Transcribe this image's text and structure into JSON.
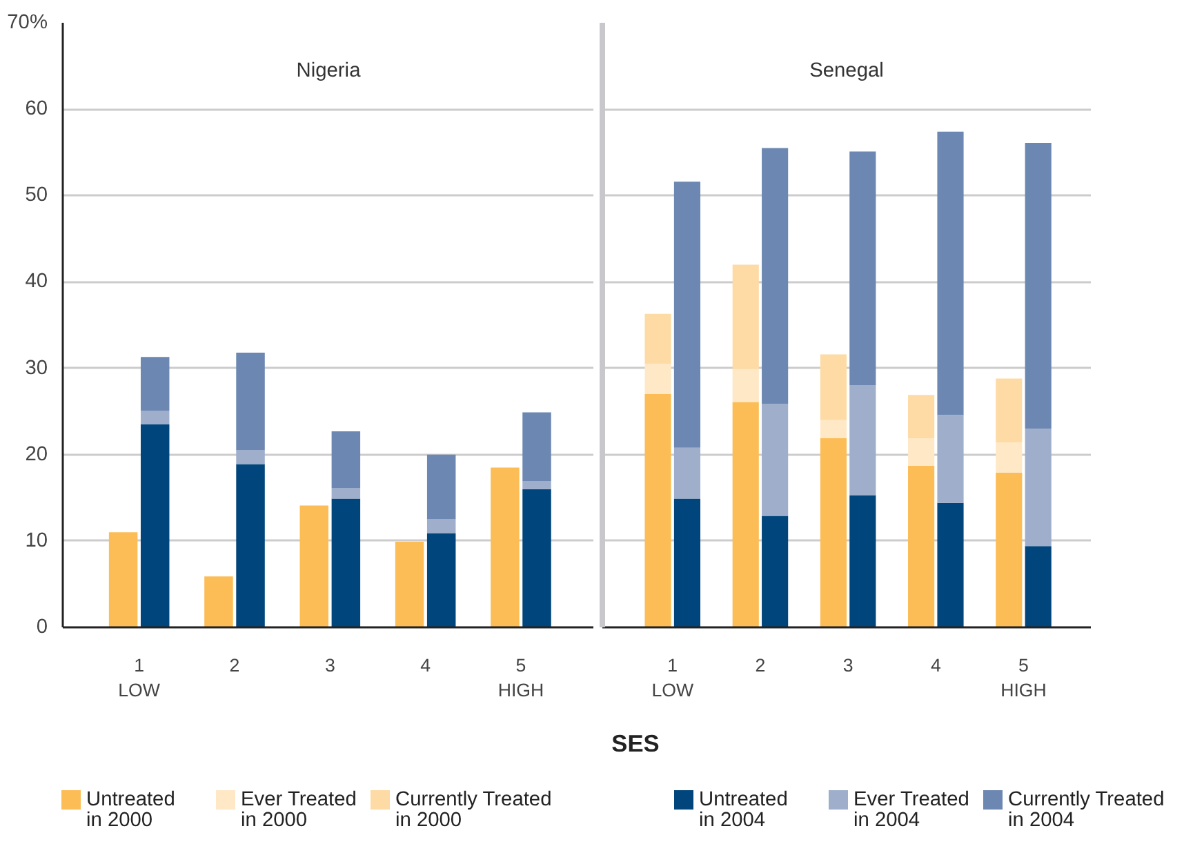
{
  "chart_data": [
    {
      "type": "bar",
      "title": "Nigeria",
      "xlabel": "SES",
      "stacked": true,
      "legend": "bottom",
      "grid": "y",
      "categories": [
        "1\nLOW",
        null,
        null,
        "2",
        null,
        null,
        "3",
        null,
        null,
        "4",
        null,
        null,
        "5\nHIGH",
        null
      ],
      "ylim": [
        0,
        70
      ],
      "yticks": [
        0,
        10,
        20,
        30,
        40,
        50,
        60,
        {
          "value": 70,
          "label": "70%"
        }
      ],
      "series": [
        {
          "name": "Untreated\nin 2000",
          "color": "#fdbd56",
          "values": [
            11.0,
            null,
            null,
            5.9,
            null,
            null,
            14.1,
            null,
            null,
            9.9,
            null,
            null,
            18.5,
            null
          ]
        },
        {
          "name": "Ever Treated\nin 2000",
          "color": "#fee8c6",
          "values": [
            null,
            null,
            null,
            null,
            null,
            null,
            null,
            null,
            null,
            null,
            null,
            null,
            null,
            null
          ]
        },
        {
          "name": "Currently Treated\nin 2000",
          "color": "#fedba5",
          "values": [
            null,
            null,
            null,
            null,
            null,
            null,
            null,
            null,
            null,
            null,
            null,
            null,
            null,
            null
          ]
        },
        {
          "name": "Untreated\nin 2004",
          "color": "#00457c",
          "values": [
            null,
            23.5,
            null,
            null,
            18.9,
            null,
            null,
            14.9,
            null,
            null,
            10.9,
            null,
            null,
            16.0
          ]
        },
        {
          "name": "Ever Treated\nin 2004",
          "color": "#9eaecb",
          "values": [
            null,
            1.6,
            null,
            null,
            1.6,
            null,
            null,
            1.2,
            null,
            null,
            1.6,
            null,
            null,
            0.9
          ]
        },
        {
          "name": "Currently Treated\nin 2004",
          "color": "#6c88b2",
          "values": [
            null,
            6.2,
            null,
            null,
            11.3,
            null,
            null,
            6.6,
            null,
            null,
            7.5,
            null,
            null,
            8.0
          ]
        }
      ]
    },
    {
      "type": "bar",
      "title": "Senegal",
      "stacked": true,
      "grid": "y",
      "tick_labels": "x",
      "categories": [
        "1\nLOW",
        null,
        null,
        "2",
        null,
        null,
        "3",
        null,
        null,
        "4",
        null,
        null,
        "5\nHIGH",
        null
      ],
      "ylim": [
        0,
        70
      ],
      "yticks": [
        0,
        10,
        20,
        30,
        40,
        50,
        60,
        70
      ],
      "series": [
        {
          "color": "#fdbd56",
          "values": [
            27.0,
            null,
            null,
            26.1,
            null,
            null,
            21.9,
            null,
            null,
            18.7,
            null,
            null,
            17.9,
            null
          ]
        },
        {
          "color": "#fee8c6",
          "values": [
            3.5,
            null,
            null,
            3.8,
            null,
            null,
            2.1,
            null,
            null,
            3.2,
            null,
            null,
            3.5,
            null
          ]
        },
        {
          "color": "#fedba5",
          "values": [
            5.8,
            null,
            null,
            12.1,
            null,
            null,
            7.6,
            null,
            null,
            5.0,
            null,
            null,
            7.4,
            null
          ]
        },
        {
          "color": "#00457c",
          "values": [
            null,
            14.9,
            null,
            null,
            12.9,
            null,
            null,
            15.3,
            null,
            null,
            14.4,
            null,
            null,
            9.4
          ]
        },
        {
          "color": "#9eaecb",
          "values": [
            null,
            5.9,
            null,
            null,
            13.0,
            null,
            null,
            12.7,
            null,
            null,
            10.2,
            null,
            null,
            13.6
          ]
        },
        {
          "color": "#6c88b2",
          "values": [
            null,
            30.8,
            null,
            null,
            29.6,
            null,
            null,
            27.1,
            null,
            null,
            32.8,
            null,
            null,
            33.1
          ]
        }
      ]
    }
  ]
}
